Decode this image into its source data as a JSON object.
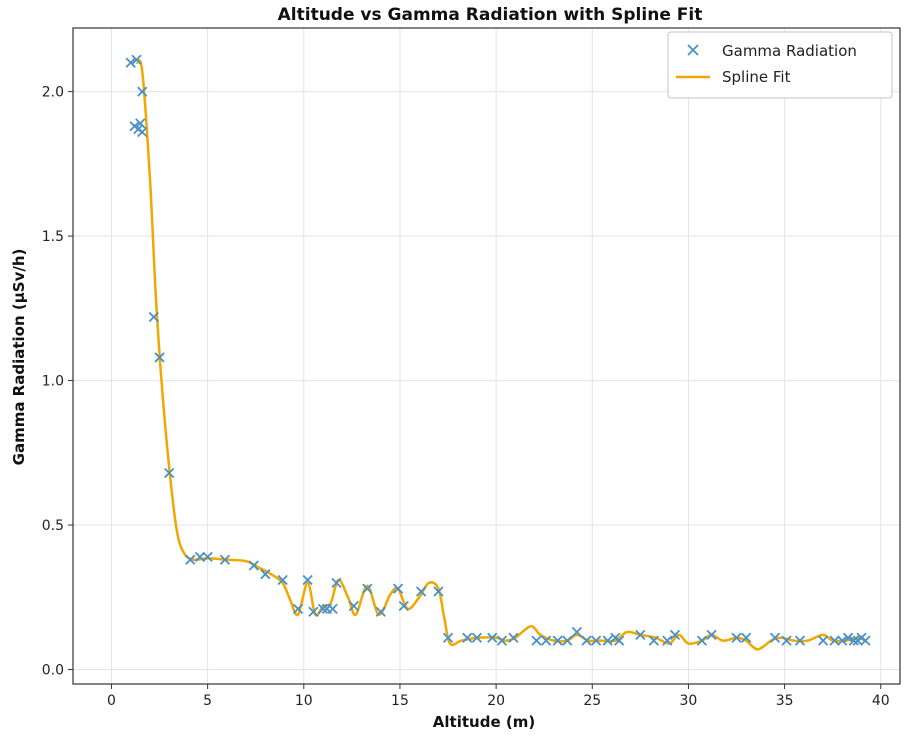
{
  "chart_data": {
    "type": "scatter",
    "title": "Altitude vs Gamma Radiation with Spline Fit",
    "xlabel": "Altitude (m)",
    "ylabel": "Gamma Radiation (μSv/h)",
    "xlim": [
      -2,
      41
    ],
    "ylim": [
      -0.05,
      2.22
    ],
    "xticks": [
      0,
      5,
      10,
      15,
      20,
      25,
      30,
      35,
      40
    ],
    "yticks": [
      0.0,
      0.5,
      1.0,
      1.5,
      2.0
    ],
    "xtick_labels": [
      "0",
      "5",
      "10",
      "15",
      "20",
      "25",
      "30",
      "35",
      "40"
    ],
    "ytick_labels": [
      "0.0",
      "0.5",
      "1.0",
      "1.5",
      "2.0"
    ],
    "grid": true,
    "legend_position": "top-right",
    "colors": {
      "scatter": "#4a90c8",
      "spline": "#f0a800"
    },
    "series": [
      {
        "name": "Gamma Radiation",
        "type": "scatter",
        "marker": "x",
        "points": [
          [
            1.0,
            2.1
          ],
          [
            1.3,
            2.11
          ],
          [
            1.2,
            1.88
          ],
          [
            1.4,
            1.87
          ],
          [
            1.5,
            1.89
          ],
          [
            1.6,
            2.0
          ],
          [
            1.6,
            1.86
          ],
          [
            2.2,
            1.22
          ],
          [
            2.5,
            1.08
          ],
          [
            3.0,
            0.68
          ],
          [
            4.1,
            0.38
          ],
          [
            4.6,
            0.39
          ],
          [
            5.0,
            0.39
          ],
          [
            5.9,
            0.38
          ],
          [
            7.4,
            0.36
          ],
          [
            8.0,
            0.33
          ],
          [
            8.9,
            0.31
          ],
          [
            9.7,
            0.21
          ],
          [
            10.2,
            0.31
          ],
          [
            10.5,
            0.2
          ],
          [
            11.0,
            0.21
          ],
          [
            11.2,
            0.21
          ],
          [
            11.5,
            0.21
          ],
          [
            11.7,
            0.3
          ],
          [
            12.6,
            0.22
          ],
          [
            13.3,
            0.28
          ],
          [
            14.0,
            0.2
          ],
          [
            14.9,
            0.28
          ],
          [
            15.2,
            0.22
          ],
          [
            16.1,
            0.27
          ],
          [
            17.0,
            0.27
          ],
          [
            17.5,
            0.11
          ],
          [
            18.5,
            0.11
          ],
          [
            19.0,
            0.11
          ],
          [
            19.8,
            0.11
          ],
          [
            20.3,
            0.1
          ],
          [
            20.9,
            0.11
          ],
          [
            22.1,
            0.1
          ],
          [
            22.6,
            0.1
          ],
          [
            23.2,
            0.1
          ],
          [
            23.7,
            0.1
          ],
          [
            24.2,
            0.13
          ],
          [
            24.7,
            0.1
          ],
          [
            25.2,
            0.1
          ],
          [
            25.8,
            0.1
          ],
          [
            26.2,
            0.11
          ],
          [
            26.4,
            0.1
          ],
          [
            27.5,
            0.12
          ],
          [
            28.2,
            0.1
          ],
          [
            28.9,
            0.1
          ],
          [
            29.3,
            0.12
          ],
          [
            30.7,
            0.1
          ],
          [
            31.2,
            0.12
          ],
          [
            32.5,
            0.11
          ],
          [
            33.0,
            0.11
          ],
          [
            34.5,
            0.11
          ],
          [
            35.1,
            0.1
          ],
          [
            35.8,
            0.1
          ],
          [
            37.0,
            0.1
          ],
          [
            37.6,
            0.1
          ],
          [
            38.0,
            0.1
          ],
          [
            38.3,
            0.11
          ],
          [
            38.6,
            0.1
          ],
          [
            38.8,
            0.1
          ],
          [
            39.0,
            0.11
          ],
          [
            39.2,
            0.1
          ]
        ]
      },
      {
        "name": "Spline Fit",
        "type": "line",
        "points": [
          [
            1.3,
            2.1
          ],
          [
            1.6,
            2.07
          ],
          [
            2.0,
            1.7
          ],
          [
            2.3,
            1.3
          ],
          [
            2.6,
            1.0
          ],
          [
            3.0,
            0.7
          ],
          [
            3.4,
            0.48
          ],
          [
            3.8,
            0.4
          ],
          [
            4.3,
            0.38
          ],
          [
            5.0,
            0.385
          ],
          [
            6.0,
            0.38
          ],
          [
            7.0,
            0.375
          ],
          [
            7.6,
            0.355
          ],
          [
            8.3,
            0.33
          ],
          [
            8.9,
            0.3
          ],
          [
            9.3,
            0.24
          ],
          [
            9.7,
            0.19
          ],
          [
            10.2,
            0.3
          ],
          [
            10.6,
            0.19
          ],
          [
            11.0,
            0.22
          ],
          [
            11.4,
            0.23
          ],
          [
            11.8,
            0.31
          ],
          [
            12.3,
            0.25
          ],
          [
            12.7,
            0.19
          ],
          [
            13.3,
            0.29
          ],
          [
            13.9,
            0.19
          ],
          [
            14.5,
            0.26
          ],
          [
            14.9,
            0.28
          ],
          [
            15.4,
            0.21
          ],
          [
            16.0,
            0.25
          ],
          [
            16.5,
            0.3
          ],
          [
            17.0,
            0.28
          ],
          [
            17.3,
            0.18
          ],
          [
            17.6,
            0.09
          ],
          [
            18.2,
            0.1
          ],
          [
            19.0,
            0.11
          ],
          [
            20.0,
            0.11
          ],
          [
            20.5,
            0.1
          ],
          [
            21.0,
            0.11
          ],
          [
            21.8,
            0.15
          ],
          [
            22.3,
            0.12
          ],
          [
            23.0,
            0.1
          ],
          [
            23.7,
            0.1
          ],
          [
            24.2,
            0.12
          ],
          [
            24.8,
            0.1
          ],
          [
            25.5,
            0.1
          ],
          [
            26.2,
            0.1
          ],
          [
            26.8,
            0.13
          ],
          [
            27.5,
            0.12
          ],
          [
            28.3,
            0.11
          ],
          [
            29.0,
            0.09
          ],
          [
            29.5,
            0.12
          ],
          [
            30.0,
            0.09
          ],
          [
            30.7,
            0.1
          ],
          [
            31.2,
            0.12
          ],
          [
            31.8,
            0.1
          ],
          [
            32.5,
            0.11
          ],
          [
            33.0,
            0.1
          ],
          [
            33.6,
            0.07
          ],
          [
            34.3,
            0.1
          ],
          [
            34.8,
            0.11
          ],
          [
            35.5,
            0.1
          ],
          [
            36.2,
            0.1
          ],
          [
            37.0,
            0.12
          ],
          [
            37.5,
            0.1
          ],
          [
            38.2,
            0.1
          ],
          [
            38.8,
            0.11
          ],
          [
            39.2,
            0.1
          ]
        ]
      }
    ]
  }
}
